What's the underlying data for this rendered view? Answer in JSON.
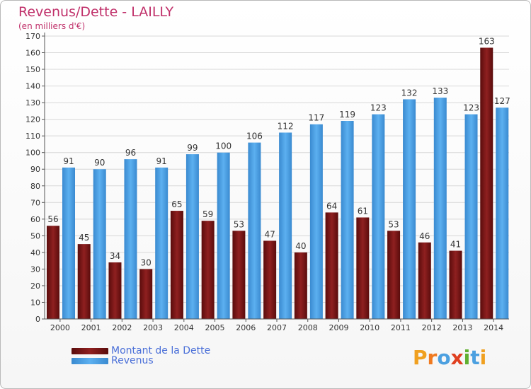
{
  "header": {
    "title": "Revenus/Dette - LAILLY",
    "subtitle": "(en milliers d'€)"
  },
  "legend": [
    {
      "label": "Montant de la Dette",
      "color": "#7a1414"
    },
    {
      "label": "Revenus",
      "color": "#4c9de0"
    }
  ],
  "logo": {
    "letters": [
      {
        "ch": "P",
        "color": "#f0a020"
      },
      {
        "ch": "r",
        "color": "#f07a20"
      },
      {
        "ch": "o",
        "color": "#4ca0e0"
      },
      {
        "ch": "x",
        "color": "#e04020"
      },
      {
        "ch": "i",
        "color": "#60b030"
      },
      {
        "ch": "t",
        "color": "#4ca0e0"
      },
      {
        "ch": "i",
        "color": "#f0a020"
      }
    ]
  },
  "chart_data": {
    "type": "bar",
    "categories": [
      "2000",
      "2001",
      "2002",
      "2003",
      "2004",
      "2005",
      "2006",
      "2007",
      "2008",
      "2009",
      "2010",
      "2011",
      "2012",
      "2013",
      "2014"
    ],
    "series": [
      {
        "name": "Montant de la Dette",
        "color": "#7a1414",
        "values": [
          56,
          45,
          34,
          30,
          65,
          59,
          53,
          47,
          40,
          64,
          61,
          53,
          46,
          41,
          163
        ]
      },
      {
        "name": "Revenus",
        "color": "#4c9de0",
        "values": [
          91,
          90,
          96,
          91,
          99,
          100,
          106,
          112,
          117,
          119,
          123,
          132,
          133,
          123,
          127
        ]
      }
    ],
    "title": "Revenus/Dette - LAILLY",
    "subtitle": "(en milliers d'€)",
    "xlabel": "",
    "ylabel": "",
    "ylim": [
      0,
      170
    ],
    "ytick_step": 10,
    "grid": true,
    "legend_position": "bottom-left"
  }
}
